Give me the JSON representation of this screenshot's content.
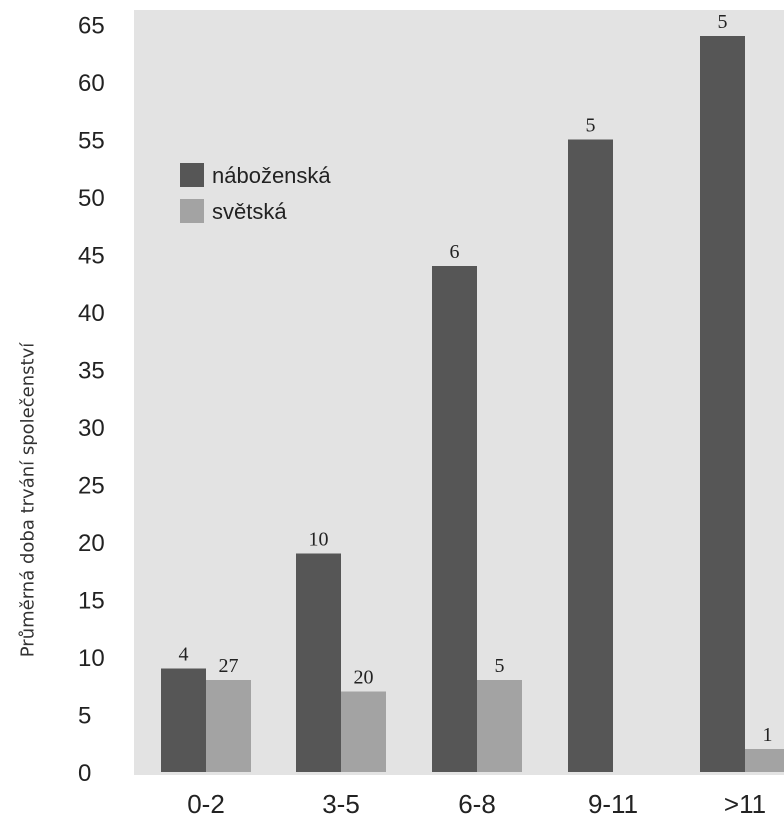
{
  "chart_data": {
    "type": "bar",
    "ylabel": "Průměrná doba trvání společenství",
    "categories": [
      "0-2",
      "3-5",
      "6-8",
      "9-11",
      ">11"
    ],
    "ylim": [
      0,
      65
    ],
    "y_ticks": [
      0,
      5,
      10,
      15,
      20,
      25,
      30,
      35,
      40,
      45,
      50,
      55,
      60,
      65
    ],
    "series": [
      {
        "name": "náboženská",
        "values": [
          9,
          19,
          44,
          55,
          64
        ],
        "labels": [
          "4",
          "10",
          "6",
          "5",
          "5"
        ],
        "color": "#565656"
      },
      {
        "name": "světská",
        "values": [
          8,
          7,
          8,
          null,
          2
        ],
        "labels": [
          "27",
          "20",
          "5",
          null,
          "1"
        ],
        "color": "#a3a3a3"
      }
    ],
    "legend_position": "top-left",
    "plot_background": "#e3e3e3"
  }
}
